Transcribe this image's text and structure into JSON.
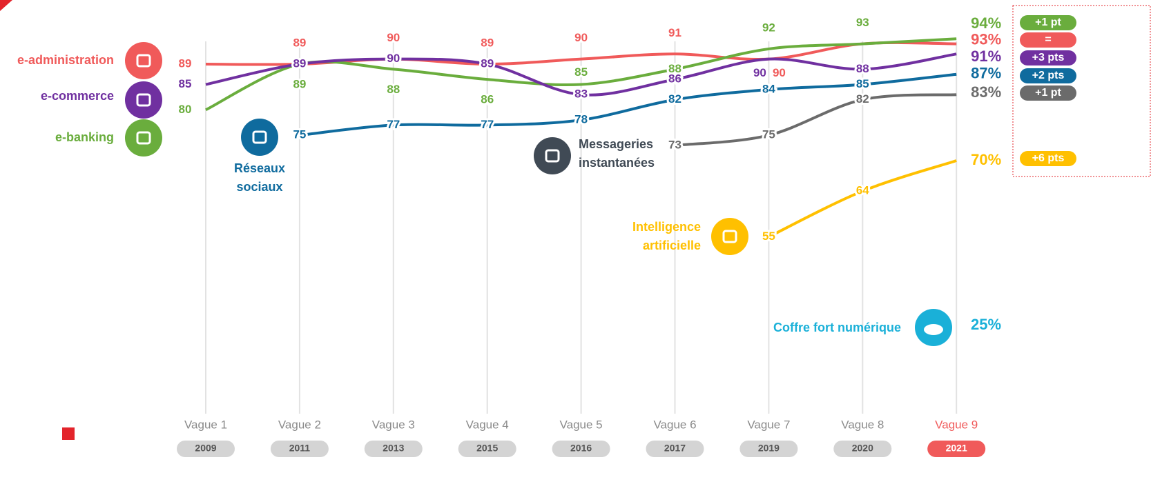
{
  "chart_data": {
    "type": "line",
    "categories": [
      "Vague 1",
      "Vague 2",
      "Vague 3",
      "Vague 4",
      "Vague 5",
      "Vague 6",
      "Vague 7",
      "Vague 8",
      "Vague 9"
    ],
    "years": [
      "2009",
      "2011",
      "2013",
      "2015",
      "2016",
      "2017",
      "2019",
      "2020",
      "2021"
    ],
    "ylim": [
      40,
      100
    ],
    "series": [
      {
        "name": "e-administration",
        "color": "#f05a5a",
        "values": [
          89,
          89,
          90,
          89,
          90,
          91,
          90,
          93,
          93
        ],
        "value_labels": [
          "89",
          "89",
          "90",
          "89",
          "90",
          "91",
          "90",
          null,
          "93%"
        ],
        "change": "="
      },
      {
        "name": "e-banking",
        "color": "#6aad3d",
        "values": [
          80,
          89,
          88,
          86,
          85,
          88,
          92,
          93,
          94
        ],
        "value_labels": [
          "80",
          "89",
          "88",
          "86",
          "85",
          "88",
          "92",
          "93",
          "94%"
        ],
        "change": "+1 pt"
      },
      {
        "name": "e-commerce",
        "color": "#7030a0",
        "values": [
          85,
          89,
          90,
          89,
          83,
          86,
          90,
          88,
          91
        ],
        "value_labels": [
          "85",
          "89",
          "90",
          "89",
          "83",
          "86",
          "90",
          "88",
          "91%"
        ],
        "change": "+3 pts"
      },
      {
        "name": "Réseaux sociaux",
        "color": "#0f6b9e",
        "values": [
          null,
          75,
          77,
          77,
          78,
          82,
          84,
          85,
          87
        ],
        "value_labels": [
          null,
          "75",
          "77",
          "77",
          "78",
          "82",
          "84",
          "85",
          "87%"
        ],
        "change": "+2 pts"
      },
      {
        "name": "Messageries instantanées",
        "color": "#6b6b6b",
        "values": [
          null,
          null,
          null,
          null,
          null,
          73,
          75,
          82,
          83
        ],
        "value_labels": [
          null,
          null,
          null,
          null,
          null,
          "73",
          "75",
          "82",
          "83%"
        ],
        "change": "+1 pt"
      },
      {
        "name": "Intelligence artificielle",
        "color": "#ffc000",
        "values": [
          null,
          null,
          null,
          null,
          null,
          null,
          55,
          64,
          70
        ],
        "value_labels": [
          null,
          null,
          null,
          null,
          null,
          null,
          "55",
          "64",
          "70%"
        ],
        "change": "+6 pts"
      }
    ],
    "annotations": [
      {
        "text": "Coffre fort numérique",
        "value_label": "25%",
        "color": "#1ab0d8"
      }
    ]
  }
}
